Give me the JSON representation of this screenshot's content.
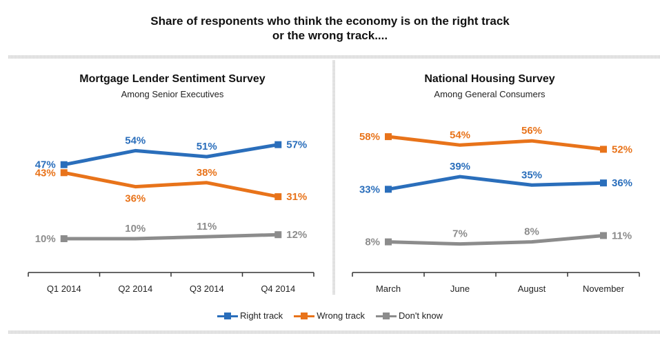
{
  "title_line1": "Share of responents who think the economy is on the right track",
  "title_line2": "or the wrong track....",
  "legend": [
    {
      "label": "Right track",
      "color": "#2a6ebb"
    },
    {
      "label": "Wrong track",
      "color": "#e8731a"
    },
    {
      "label": "Don't know",
      "color": "#8c8c8c"
    }
  ],
  "chart_data": [
    {
      "type": "line",
      "title": "Mortgage Lender Sentiment Survey",
      "subtitle": "Among Senior Executives",
      "categories": [
        "Q1 2014",
        "Q2 2014",
        "Q3 2014",
        "Q4 2014"
      ],
      "xlabel": "",
      "ylabel": "",
      "ylim": [
        0,
        70
      ],
      "grid": false,
      "legend": "bottom",
      "series": [
        {
          "name": "Right track",
          "color": "#2a6ebb",
          "values": [
            47,
            54,
            51,
            57
          ],
          "labels": [
            "47%",
            "54%",
            "51%",
            "57%"
          ]
        },
        {
          "name": "Wrong track",
          "color": "#e8731a",
          "values": [
            43,
            36,
            38,
            31
          ],
          "labels": [
            "43%",
            "36%",
            "38%",
            "31%"
          ]
        },
        {
          "name": "Don't know",
          "color": "#8c8c8c",
          "values": [
            10,
            10,
            11,
            12
          ],
          "labels": [
            "10%",
            "10%",
            "11%",
            "12%"
          ]
        }
      ]
    },
    {
      "type": "line",
      "title": "National Housing Survey",
      "subtitle": "Among General Consumers",
      "categories": [
        "March",
        "June",
        "August",
        "November"
      ],
      "xlabel": "",
      "ylabel": "",
      "ylim": [
        0,
        70
      ],
      "grid": false,
      "legend": "bottom",
      "series": [
        {
          "name": "Right track",
          "color": "#2a6ebb",
          "values": [
            33,
            39,
            35,
            36
          ],
          "labels": [
            "33%",
            "39%",
            "35%",
            "36%"
          ]
        },
        {
          "name": "Wrong track",
          "color": "#e8731a",
          "values": [
            58,
            54,
            56,
            52
          ],
          "labels": [
            "58%",
            "54%",
            "56%",
            "52%"
          ]
        },
        {
          "name": "Don't know",
          "color": "#8c8c8c",
          "values": [
            8,
            7,
            8,
            11
          ],
          "labels": [
            "8%",
            "7%",
            "8%",
            "11%"
          ]
        }
      ]
    }
  ]
}
